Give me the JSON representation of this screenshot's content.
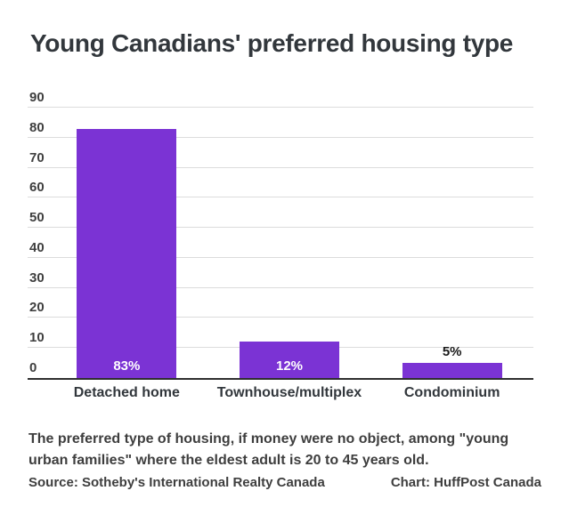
{
  "title": "Young Canadians' preferred housing type",
  "chart_data": {
    "type": "bar",
    "title": "Young Canadians' preferred housing type",
    "categories": [
      "Detached home",
      "Townhouse/multiplex",
      "Condominium"
    ],
    "values": [
      83,
      12,
      5
    ],
    "value_labels": [
      "83%",
      "12%",
      "5%"
    ],
    "xlabel": "",
    "ylabel": "",
    "ylim": [
      0,
      90
    ],
    "yticks": [
      0,
      10,
      20,
      30,
      40,
      50,
      60,
      70,
      80,
      90
    ],
    "grid": true,
    "legend": "none",
    "bar_color": "#7b33d4",
    "value_label_color_inside": "#ffffff",
    "value_label_color_above": "#1a1a1a",
    "gridline_color": "#dcdcdc",
    "axis_line_color": "#2e2e2e"
  },
  "footer": {
    "caption": "The preferred type of housing, if money were no object, among \"young urban families\" where the eldest adult is 20 to 45 years old.",
    "source": "Source: Sotheby's International Realty Canada",
    "credit": "Chart: HuffPost Canada"
  }
}
